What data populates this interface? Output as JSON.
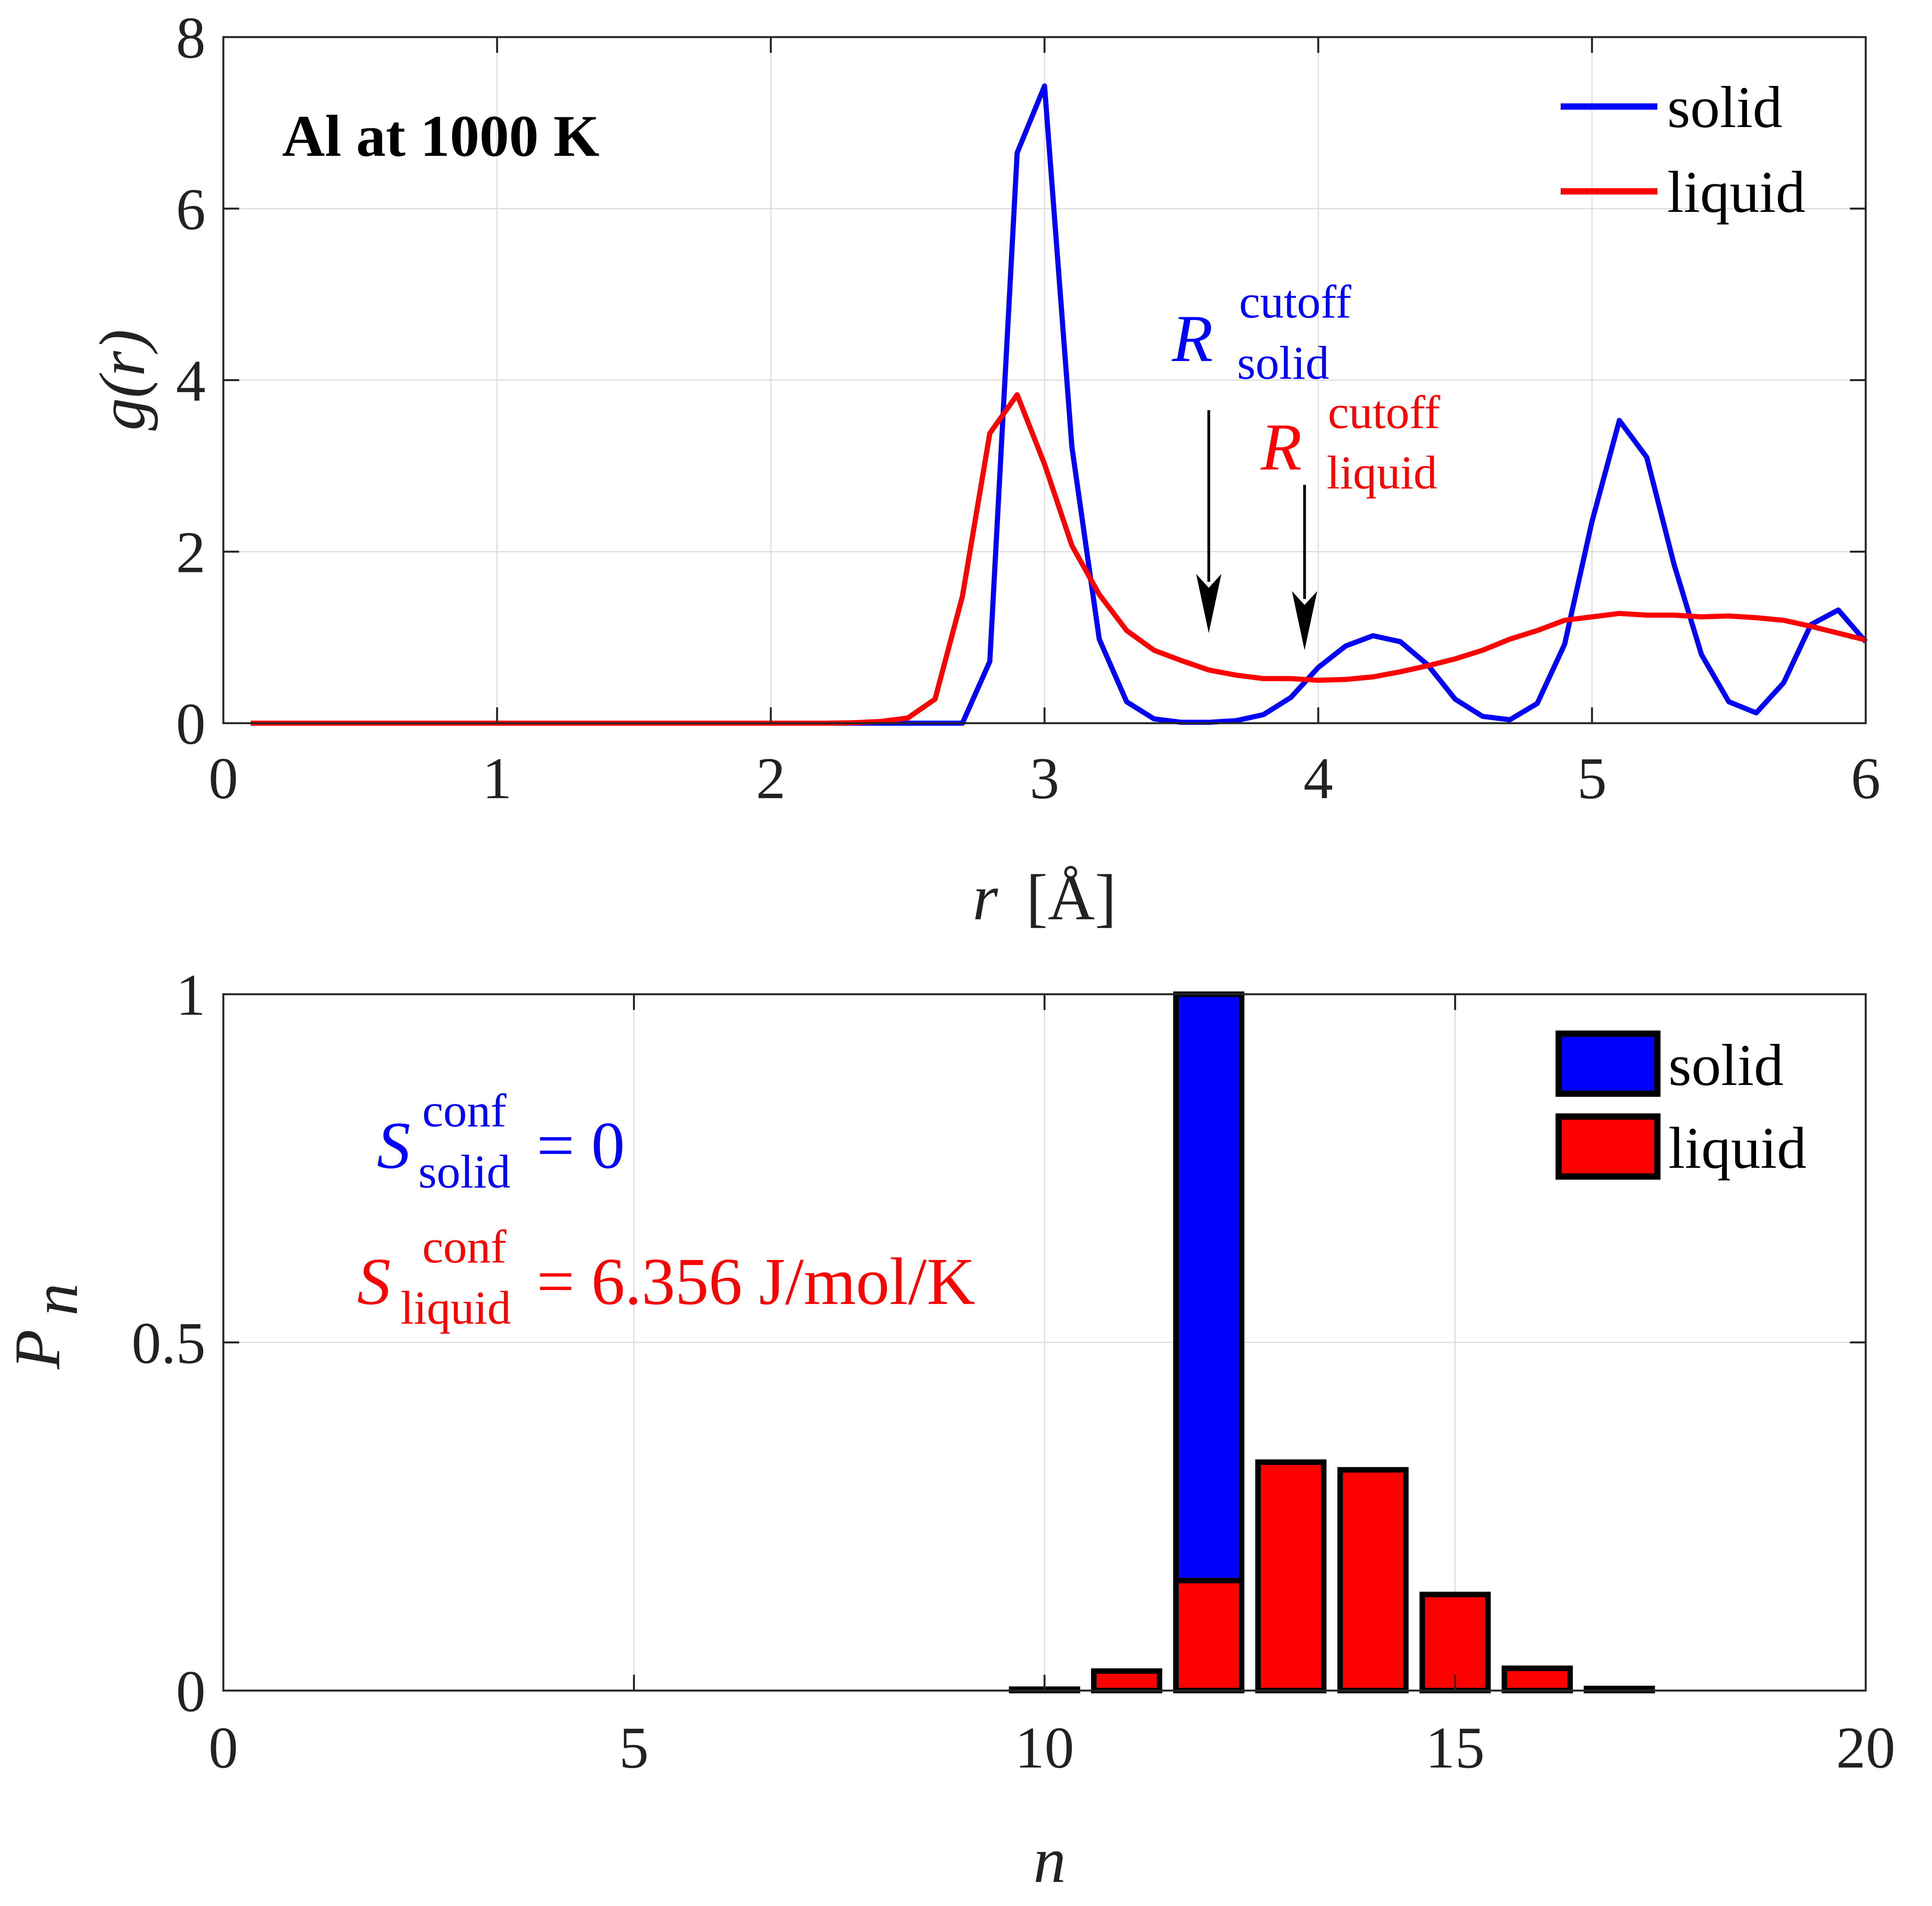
{
  "colors": {
    "solid": "#0000ff",
    "liquid": "#ff0000",
    "arrow": "#000000",
    "grid": "#dddddd",
    "axis": "#262626"
  },
  "chart_data": [
    {
      "type": "line",
      "title": "Al at 1000 K",
      "xlabel_var": "r",
      "xlabel_unit": "[Å]",
      "ylabel": "g(r)",
      "xlim": [
        0,
        6
      ],
      "ylim": [
        0,
        8
      ],
      "xticks": [
        0,
        1,
        2,
        3,
        4,
        5,
        6
      ],
      "yticks": [
        0,
        2,
        4,
        6,
        8
      ],
      "grid": true,
      "legend_position": "top-right",
      "series": [
        {
          "name": "solid",
          "x": [
            0.1,
            0.2,
            0.3,
            0.4,
            0.5,
            0.6,
            0.7,
            0.8,
            0.9,
            1.0,
            1.1,
            1.2,
            1.3,
            1.4,
            1.5,
            1.6,
            1.7,
            1.8,
            1.9,
            2.0,
            2.1,
            2.2,
            2.3,
            2.4,
            2.5,
            2.6,
            2.7,
            2.8,
            2.9,
            3.0,
            3.1,
            3.2,
            3.3,
            3.4,
            3.5,
            3.6,
            3.7,
            3.8,
            3.9,
            4.0,
            4.1,
            4.2,
            4.3,
            4.4,
            4.5,
            4.6,
            4.7,
            4.8,
            4.9,
            5.0,
            5.1,
            5.2,
            5.3,
            5.4,
            5.5,
            5.6,
            5.7,
            5.8,
            5.9,
            6.0
          ],
          "y": [
            0,
            0,
            0,
            0,
            0,
            0,
            0,
            0,
            0,
            0,
            0,
            0,
            0,
            0,
            0,
            0,
            0,
            0,
            0,
            0,
            0,
            0,
            0,
            0,
            0,
            0,
            0,
            0.72,
            6.65,
            7.43,
            3.22,
            0.98,
            0.25,
            0.05,
            0.01,
            0.01,
            0.03,
            0.1,
            0.3,
            0.65,
            0.9,
            1.02,
            0.95,
            0.68,
            0.28,
            0.08,
            0.04,
            0.23,
            0.92,
            2.35,
            3.53,
            3.1,
            1.85,
            0.8,
            0.25,
            0.12,
            0.47,
            1.15,
            1.32,
            0.95
          ]
        },
        {
          "name": "liquid",
          "x": [
            0.1,
            0.2,
            0.3,
            0.4,
            0.5,
            0.6,
            0.7,
            0.8,
            0.9,
            1.0,
            1.1,
            1.2,
            1.3,
            1.4,
            1.5,
            1.6,
            1.7,
            1.8,
            1.9,
            2.0,
            2.1,
            2.2,
            2.3,
            2.4,
            2.5,
            2.6,
            2.7,
            2.8,
            2.9,
            3.0,
            3.1,
            3.2,
            3.3,
            3.4,
            3.5,
            3.6,
            3.7,
            3.8,
            3.9,
            4.0,
            4.1,
            4.2,
            4.3,
            4.4,
            4.5,
            4.6,
            4.7,
            4.8,
            4.9,
            5.0,
            5.1,
            5.2,
            5.3,
            5.4,
            5.5,
            5.6,
            5.7,
            5.8,
            5.9,
            6.0
          ],
          "y": [
            0,
            0,
            0,
            0,
            0,
            0,
            0,
            0,
            0,
            0,
            0,
            0,
            0,
            0,
            0,
            0,
            0,
            0,
            0,
            0,
            0,
            0,
            0.005,
            0.02,
            0.06,
            0.28,
            1.48,
            3.38,
            3.83,
            3.02,
            2.07,
            1.5,
            1.08,
            0.85,
            0.73,
            0.62,
            0.56,
            0.52,
            0.52,
            0.5,
            0.51,
            0.54,
            0.6,
            0.67,
            0.75,
            0.85,
            0.98,
            1.08,
            1.2,
            1.24,
            1.28,
            1.26,
            1.26,
            1.24,
            1.25,
            1.23,
            1.2,
            1.13,
            1.05,
            0.97
          ]
        }
      ],
      "annotations": [
        {
          "id": "r_solid",
          "base": "R",
          "sup": "cutoff",
          "sub": "solid",
          "series": "solid",
          "arrow_x": 3.6,
          "arrow_from_y": 3.65,
          "arrow_to_y": 1.05
        },
        {
          "id": "r_liquid",
          "base": "R",
          "sup": "cutoff",
          "sub": "liquid",
          "series": "liquid",
          "arrow_x": 3.95,
          "arrow_from_y": 2.78,
          "arrow_to_y": 0.85
        }
      ]
    },
    {
      "type": "bar",
      "xlabel": "n",
      "ylabel_base": "P",
      "ylabel_sub": "n",
      "xlim": [
        0,
        20
      ],
      "ylim": [
        0,
        1
      ],
      "xticks": [
        0,
        5,
        10,
        15,
        20
      ],
      "yticks": [
        0,
        0.5,
        1
      ],
      "grid": true,
      "legend_position": "top-right",
      "categories": [
        1,
        2,
        3,
        4,
        5,
        6,
        7,
        8,
        9,
        10,
        11,
        12,
        13,
        14,
        15,
        16,
        17,
        18,
        19,
        20
      ],
      "series": [
        {
          "name": "solid",
          "values": [
            0,
            0,
            0,
            0,
            0,
            0,
            0,
            0,
            0,
            0,
            0,
            1.0,
            0,
            0,
            0,
            0,
            0,
            0,
            0,
            0
          ]
        },
        {
          "name": "liquid",
          "values": [
            0,
            0,
            0,
            0,
            0,
            0,
            0,
            0,
            0,
            0.002,
            0.028,
            0.158,
            0.328,
            0.317,
            0.138,
            0.032,
            0.003,
            0,
            0,
            0
          ]
        }
      ],
      "annotations": [
        {
          "id": "s_solid",
          "base": "S",
          "sup": "conf",
          "sub": "solid",
          "rest": "= 0",
          "series": "solid"
        },
        {
          "id": "s_liquid",
          "base": "S",
          "sup": "conf",
          "sub": "liquid",
          "rest": "= 6.356 J/mol/K",
          "series": "liquid"
        }
      ]
    }
  ]
}
